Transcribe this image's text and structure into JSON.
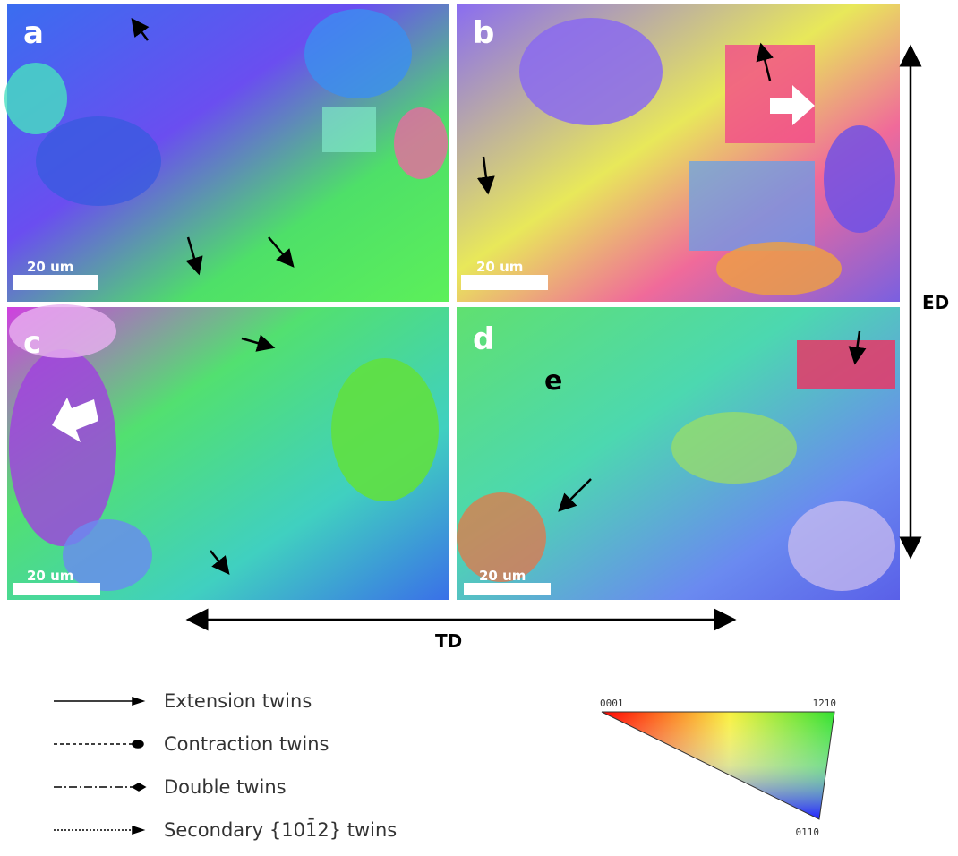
{
  "panels": [
    {
      "label": "a",
      "scale_bar": "20 um"
    },
    {
      "label": "b",
      "scale_bar": "20 um"
    },
    {
      "label": "c",
      "scale_bar": "20 um"
    },
    {
      "label": "d",
      "scale_bar": "20 um"
    }
  ],
  "annotation": "e",
  "axes": {
    "vertical": "ED",
    "horizontal": "TD"
  },
  "legend": [
    "Extension twins",
    "Contraction twins",
    "Double twins",
    "Secondary {101̄2} twins"
  ],
  "ipf": {
    "corners": [
      "0001",
      "1̄21̄0",
      "011̄0"
    ]
  }
}
